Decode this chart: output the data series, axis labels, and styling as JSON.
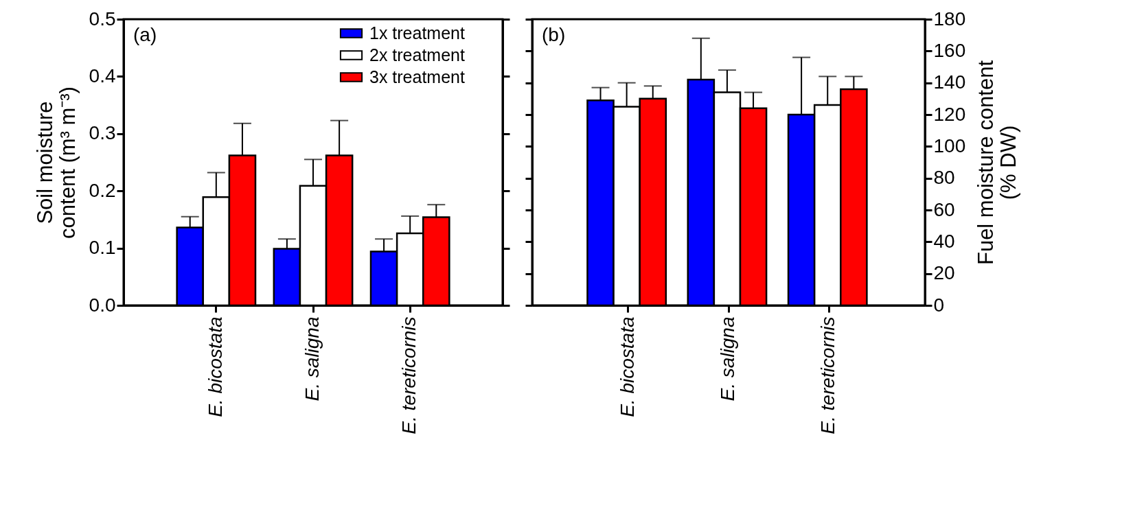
{
  "chart_data": [
    {
      "type": "bar",
      "categories": [
        "E. bicostata",
        "E. saligna",
        "E. tereticornis"
      ],
      "ylabel": "Soil moisture\ncontent (m³ m⁻³)",
      "ylim": [
        0,
        0.5
      ],
      "yticks": [
        {
          "value": 0,
          "label": "0.0"
        },
        {
          "value": 0.1,
          "label": "0.1"
        },
        {
          "value": 0.2,
          "label": "0.2"
        },
        {
          "value": 0.3,
          "label": "0.3"
        },
        {
          "value": 0.4,
          "label": "0.4"
        },
        {
          "value": 0.5,
          "label": "0.5"
        }
      ],
      "legend": "top right",
      "annotations": [
        "(a)"
      ],
      "series": [
        {
          "name": "1x treatment",
          "color": "#0000ff",
          "values": [
            0.136,
            0.099,
            0.094
          ],
          "errors": [
            0.019,
            0.017,
            0.022
          ]
        },
        {
          "name": "2x treatment",
          "color": "#ffffff",
          "values": [
            0.189,
            0.209,
            0.126
          ],
          "errors": [
            0.043,
            0.046,
            0.03
          ]
        },
        {
          "name": "3x treatment",
          "color": "#ff0000",
          "values": [
            0.262,
            0.262,
            0.154
          ],
          "errors": [
            0.056,
            0.061,
            0.022
          ]
        }
      ]
    },
    {
      "type": "bar",
      "categories": [
        "E. bicostata",
        "E. saligna",
        "E. tereticornis"
      ],
      "y2label": "Fuel moisture content\n(% DW)",
      "y2lim": [
        0,
        180
      ],
      "y2ticks": [
        0,
        20,
        40,
        60,
        80,
        100,
        120,
        140,
        160,
        180
      ],
      "annotations": [
        "(b)"
      ],
      "series": [
        {
          "color": "#0000ff",
          "axis": "y2",
          "values": [
            129,
            142,
            120
          ],
          "errors": [
            8,
            26,
            36
          ]
        },
        {
          "color": "#ffffff",
          "axis": "y2",
          "values": [
            125,
            134,
            126
          ],
          "errors": [
            15,
            14,
            18
          ]
        },
        {
          "color": "#ff0000",
          "axis": "y2",
          "values": [
            130,
            124,
            136
          ],
          "errors": [
            8,
            10,
            8
          ]
        }
      ]
    }
  ]
}
